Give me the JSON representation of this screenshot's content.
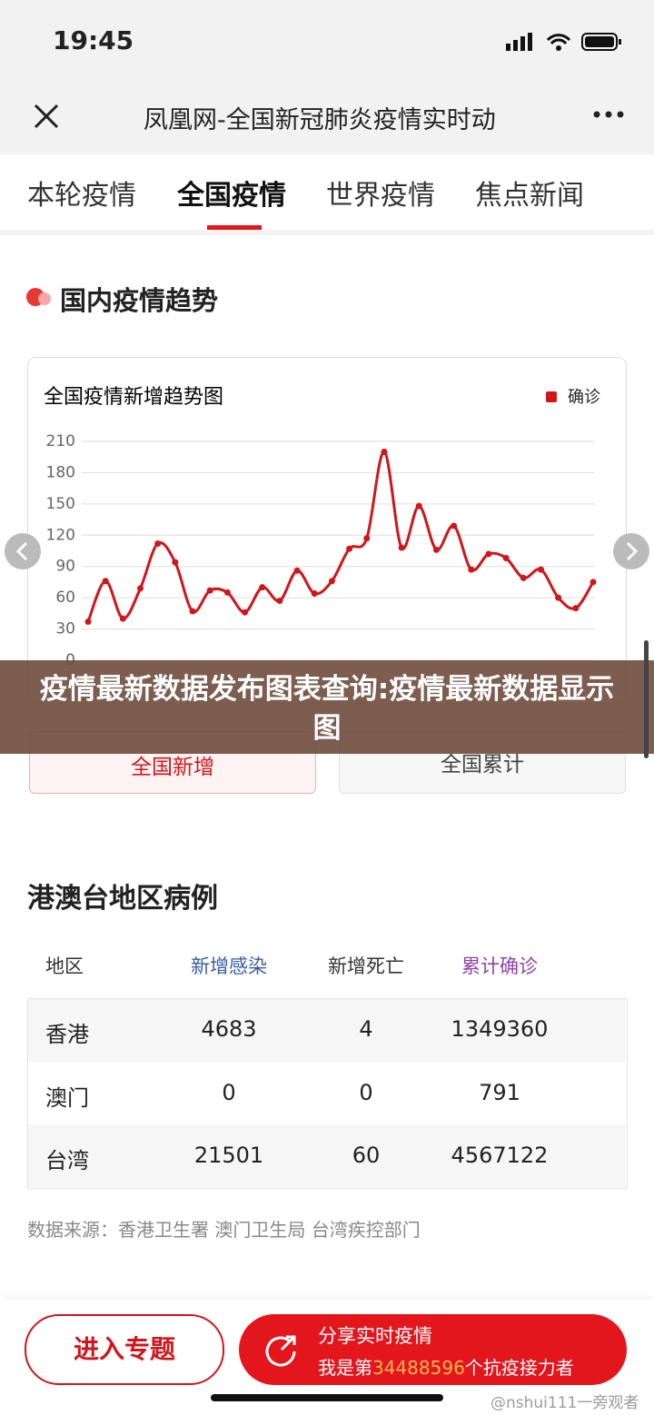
{
  "status": {
    "time": "19:45"
  },
  "nav": {
    "title": "凤凰网-全国新冠肺炎疫情实时动"
  },
  "tabs": [
    "本轮疫情",
    "全国疫情",
    "世界疫情",
    "焦点新闻"
  ],
  "section_title": "国内疫情趋势",
  "chart_data": {
    "type": "line",
    "title": "全国疫情新增趋势图",
    "series": [
      {
        "name": "确诊",
        "color": "#d0161b",
        "values": [
          37,
          76,
          40,
          69,
          112,
          94,
          47,
          67,
          65,
          46,
          70,
          57,
          86,
          64,
          76,
          107,
          117,
          200,
          108,
          148,
          106,
          129,
          87,
          102,
          98,
          79,
          87,
          60,
          50,
          75
        ]
      }
    ],
    "ylim": [
      0,
      210
    ],
    "yticks": [
      0,
      30,
      60,
      90,
      120,
      150,
      180,
      210
    ],
    "grid": true,
    "legend": "top-right"
  },
  "banner": "疫情最新数据发布图表查询:疫情最新数据显示图",
  "chart_buttons": [
    "全国新增",
    "全国累计"
  ],
  "region_title": "港澳台地区病例",
  "table": {
    "header": [
      "地区",
      "新增感染",
      "新增死亡",
      "累计确诊"
    ],
    "rows": [
      [
        "香港",
        4683,
        4,
        1349360
      ],
      [
        "澳门",
        0,
        0,
        791
      ],
      [
        "台湾",
        21501,
        60,
        4567122
      ]
    ]
  },
  "source": "数据来源：香港卫生署 澳门卫生局 台湾疾控部门",
  "footer": {
    "enter": "进入专题",
    "share_title": "分享实时疫情",
    "share_prefix": "我是第",
    "share_count": 34488596,
    "share_suffix": "个抗疫接力者"
  },
  "watermark": "@nshui111一旁观者"
}
